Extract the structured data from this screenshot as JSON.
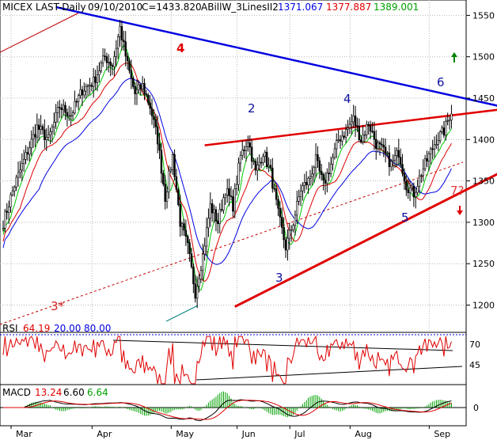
{
  "header": {
    "symbol_title": "MICEX LAST-Daily",
    "date": "09/10/2010",
    "close": "C=1433.820",
    "indicator_name": "ABillW_3LinesII2",
    "indicator_values": [
      "1371.067",
      "1377.887",
      "1389.001"
    ]
  },
  "rsi_header": {
    "label": "RSI",
    "value": "64.19",
    "levels": [
      "20.00",
      "80.00"
    ]
  },
  "macd_header": {
    "label": "MACD",
    "values": [
      "13.24",
      "6.60",
      "6.64"
    ]
  },
  "annotations": {
    "wave_2": "2",
    "wave_3": "3",
    "wave_4": "4",
    "wave_5": "5",
    "wave_6": "6",
    "wave_big_4": "4",
    "wave_7": "7?",
    "wave_3star": "3*"
  },
  "colors": {
    "price_up": "#000000",
    "ma_fast": "#00c800",
    "ma_mid": "#dc0000",
    "ma_slow": "#0000e0",
    "trend_blue": "#0000e0",
    "trend_red": "#e00000",
    "rsi": "#e00000",
    "macd_hist": "#00a000",
    "up_arrow": "#008000",
    "down_arrow": "#e00000"
  },
  "chart_data": {
    "type": "candlestick",
    "x_tick_labels": [
      "Mar",
      "Apr",
      "May",
      "Jun",
      "Jul",
      "Aug",
      "Sep"
    ],
    "y_tick_labels": [
      "1550",
      "1500",
      "1450",
      "1400",
      "1350",
      "1300",
      "1250",
      "1200"
    ],
    "ylim": [
      1180,
      1565
    ],
    "rsi_tick_labels": [
      "70",
      "45"
    ],
    "macd_tick_labels": [
      "0"
    ],
    "price_path": [
      {
        "d": 0,
        "p": 1300
      },
      {
        "d": 6,
        "p": 1345
      },
      {
        "d": 12,
        "p": 1380
      },
      {
        "d": 18,
        "p": 1415
      },
      {
        "d": 24,
        "p": 1400
      },
      {
        "d": 30,
        "p": 1440
      },
      {
        "d": 36,
        "p": 1430
      },
      {
        "d": 42,
        "p": 1460
      },
      {
        "d": 48,
        "p": 1470
      },
      {
        "d": 54,
        "p": 1500
      },
      {
        "d": 58,
        "p": 1490
      },
      {
        "d": 62,
        "p": 1535
      },
      {
        "d": 66,
        "p": 1490
      },
      {
        "d": 70,
        "p": 1455
      },
      {
        "d": 74,
        "p": 1465
      },
      {
        "d": 78,
        "p": 1440
      },
      {
        "d": 82,
        "p": 1400
      },
      {
        "d": 86,
        "p": 1330
      },
      {
        "d": 90,
        "p": 1380
      },
      {
        "d": 94,
        "p": 1300
      },
      {
        "d": 98,
        "p": 1270
      },
      {
        "d": 102,
        "p": 1215
      },
      {
        "d": 106,
        "p": 1260
      },
      {
        "d": 110,
        "p": 1320
      },
      {
        "d": 114,
        "p": 1300
      },
      {
        "d": 118,
        "p": 1340
      },
      {
        "d": 122,
        "p": 1320
      },
      {
        "d": 126,
        "p": 1380
      },
      {
        "d": 130,
        "p": 1400
      },
      {
        "d": 134,
        "p": 1360
      },
      {
        "d": 138,
        "p": 1385
      },
      {
        "d": 142,
        "p": 1360
      },
      {
        "d": 146,
        "p": 1310
      },
      {
        "d": 150,
        "p": 1270
      },
      {
        "d": 154,
        "p": 1300
      },
      {
        "d": 158,
        "p": 1340
      },
      {
        "d": 162,
        "p": 1350
      },
      {
        "d": 166,
        "p": 1375
      },
      {
        "d": 170,
        "p": 1345
      },
      {
        "d": 174,
        "p": 1370
      },
      {
        "d": 178,
        "p": 1400
      },
      {
        "d": 182,
        "p": 1410
      },
      {
        "d": 186,
        "p": 1425
      },
      {
        "d": 190,
        "p": 1400
      },
      {
        "d": 194,
        "p": 1420
      },
      {
        "d": 198,
        "p": 1395
      },
      {
        "d": 202,
        "p": 1385
      },
      {
        "d": 206,
        "p": 1370
      },
      {
        "d": 210,
        "p": 1385
      },
      {
        "d": 214,
        "p": 1345
      },
      {
        "d": 218,
        "p": 1335
      },
      {
        "d": 222,
        "p": 1360
      },
      {
        "d": 226,
        "p": 1380
      },
      {
        "d": 230,
        "p": 1400
      },
      {
        "d": 234,
        "p": 1410
      },
      {
        "d": 238,
        "p": 1435
      }
    ],
    "trendlines": [
      {
        "name": "upper-blue",
        "points": [
          [
            28,
            1560
          ],
          [
            270,
            1437
          ]
        ]
      },
      {
        "name": "red-channel-top",
        "points": [
          [
            107,
            1393
          ],
          [
            270,
            1438
          ]
        ]
      },
      {
        "name": "red-channel-bottom",
        "points": [
          [
            123,
            1198
          ],
          [
            270,
            1367
          ]
        ]
      }
    ]
  }
}
